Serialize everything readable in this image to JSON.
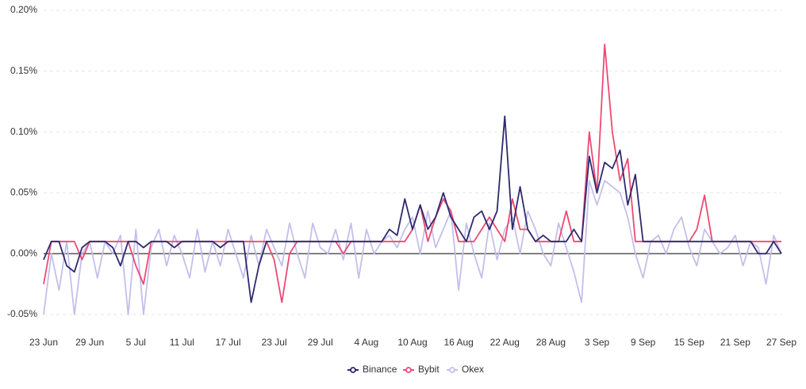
{
  "chart_data": {
    "type": "line",
    "categories": [
      "23 Jun",
      null,
      null,
      null,
      null,
      null,
      "29 Jun",
      null,
      null,
      null,
      null,
      null,
      "5 Jul",
      null,
      null,
      null,
      null,
      null,
      "11 Jul",
      null,
      null,
      null,
      null,
      null,
      "17 Jul",
      null,
      null,
      null,
      null,
      null,
      "23 Jul",
      null,
      null,
      null,
      null,
      null,
      "29 Jul",
      null,
      null,
      null,
      null,
      null,
      "4 Aug",
      null,
      null,
      null,
      null,
      null,
      "10 Aug",
      null,
      null,
      null,
      null,
      null,
      "16 Aug",
      null,
      null,
      null,
      null,
      null,
      "22 Aug",
      null,
      null,
      null,
      null,
      null,
      "28 Aug",
      null,
      null,
      null,
      null,
      null,
      "3 Sep",
      null,
      null,
      null,
      null,
      null,
      "9 Sep",
      null,
      null,
      null,
      null,
      null,
      "15 Sep",
      null,
      null,
      null,
      null,
      null,
      "21 Sep",
      null,
      null,
      null,
      null,
      null,
      "27 Sep"
    ],
    "series": [
      {
        "name": "Binance",
        "color": "#2d2a6e",
        "values": [
          -0.005,
          0.01,
          0.01,
          -0.01,
          -0.015,
          0.005,
          0.01,
          0.01,
          0.01,
          0.005,
          -0.01,
          0.01,
          0.01,
          0.005,
          0.01,
          0.01,
          0.01,
          0.005,
          0.01,
          0.01,
          0.01,
          0.01,
          0.01,
          0.005,
          0.01,
          0.01,
          0.01,
          -0.04,
          -0.01,
          0.01,
          0.01,
          0.01,
          0.01,
          0.01,
          0.01,
          0.01,
          0.01,
          0.01,
          0.01,
          0.01,
          0.01,
          0.01,
          0.01,
          0.01,
          0.01,
          0.02,
          0.015,
          0.045,
          0.02,
          0.04,
          0.02,
          0.03,
          0.05,
          0.03,
          0.02,
          0.01,
          0.03,
          0.035,
          0.02,
          0.035,
          0.113,
          0.02,
          0.055,
          0.02,
          0.01,
          0.015,
          0.01,
          0.01,
          0.01,
          0.02,
          0.01,
          0.08,
          0.05,
          0.075,
          0.07,
          0.085,
          0.04,
          0.065,
          0.01,
          0.01,
          0.01,
          0.01,
          0.01,
          0.01,
          0.01,
          0.01,
          0.01,
          0.01,
          0.01,
          0.01,
          0.01,
          0.01,
          0.01,
          0.0,
          0.0,
          0.01,
          0.0
        ]
      },
      {
        "name": "Bybit",
        "color": "#ec4a74",
        "values": [
          -0.025,
          0.01,
          0.01,
          0.01,
          0.01,
          -0.005,
          0.01,
          0.01,
          0.01,
          0.01,
          0.01,
          0.01,
          -0.01,
          -0.025,
          0.01,
          0.01,
          0.01,
          0.01,
          0.01,
          0.01,
          0.01,
          0.01,
          0.01,
          0.01,
          0.01,
          0.01,
          0.01,
          0.01,
          0.01,
          0.01,
          -0.005,
          -0.04,
          0.0,
          0.01,
          0.01,
          0.01,
          0.01,
          0.01,
          0.01,
          0.0,
          0.01,
          0.01,
          0.01,
          0.01,
          0.01,
          0.01,
          0.01,
          0.01,
          0.02,
          0.04,
          0.01,
          0.03,
          0.045,
          0.035,
          0.01,
          0.01,
          0.01,
          0.02,
          0.03,
          0.02,
          0.01,
          0.045,
          0.02,
          0.02,
          0.01,
          0.01,
          0.01,
          0.01,
          0.035,
          0.01,
          0.01,
          0.1,
          0.05,
          0.172,
          0.1,
          0.06,
          0.078,
          0.01,
          0.01,
          0.01,
          0.01,
          0.01,
          0.01,
          0.01,
          0.01,
          0.02,
          0.048,
          0.01,
          0.01,
          0.01,
          0.01,
          0.01,
          0.01,
          0.01,
          0.01,
          0.01,
          0.01
        ]
      },
      {
        "name": "Okex",
        "color": "#c4bfec",
        "values": [
          -0.05,
          0.0,
          -0.03,
          0.01,
          -0.05,
          0.0,
          0.01,
          -0.02,
          0.01,
          0.0,
          0.015,
          -0.05,
          0.02,
          -0.05,
          0.005,
          0.02,
          -0.01,
          0.015,
          0.0,
          -0.02,
          0.02,
          -0.015,
          0.01,
          -0.01,
          0.02,
          0.0,
          -0.02,
          0.015,
          -0.01,
          0.02,
          0.005,
          -0.01,
          0.025,
          0.0,
          -0.02,
          0.025,
          0.005,
          0.0,
          0.02,
          -0.005,
          0.025,
          -0.02,
          0.02,
          0.0,
          0.01,
          0.015,
          0.005,
          0.02,
          0.03,
          0.0,
          0.035,
          0.005,
          0.02,
          0.035,
          -0.03,
          0.025,
          0.0,
          -0.02,
          0.025,
          -0.005,
          0.02,
          0.03,
          0.0,
          0.035,
          0.02,
          0.0,
          -0.01,
          0.025,
          0.005,
          -0.015,
          -0.04,
          0.06,
          0.04,
          0.06,
          0.055,
          0.05,
          0.03,
          0.0,
          -0.02,
          0.01,
          0.015,
          0.0,
          0.02,
          0.03,
          0.005,
          -0.01,
          0.02,
          0.01,
          0.0,
          0.005,
          0.015,
          -0.01,
          0.01,
          0.005,
          -0.025,
          0.015,
          0.0
        ]
      }
    ],
    "ylim": [
      -0.065,
      0.2
    ],
    "yticks": [
      {
        "value": -0.05,
        "label": "-0.05%"
      },
      {
        "value": 0,
        "label": "0.00%"
      },
      {
        "value": 0.05,
        "label": "0.05%"
      },
      {
        "value": 0.1,
        "label": "0.10%"
      },
      {
        "value": 0.15,
        "label": "0.15%"
      },
      {
        "value": 0.2,
        "label": "0.20%"
      }
    ],
    "grid": true,
    "legend": "bottom"
  }
}
